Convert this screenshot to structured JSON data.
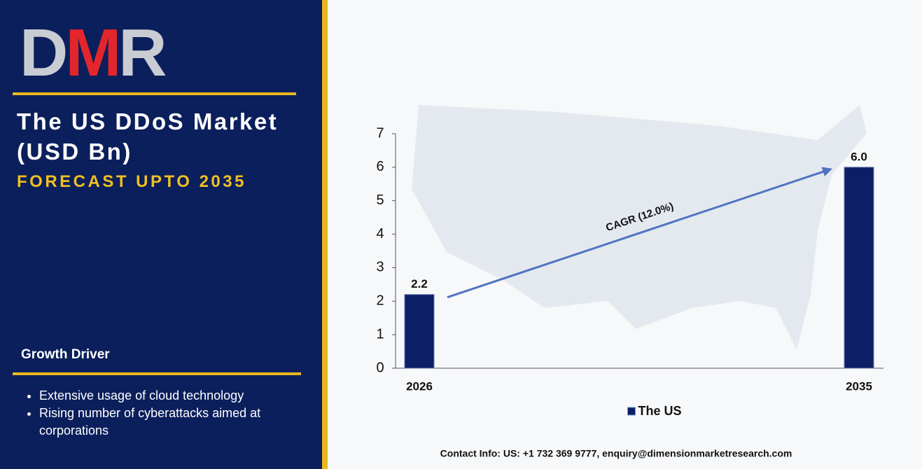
{
  "logo": [
    "D",
    "M",
    "R"
  ],
  "title": [
    "The US DDoS Market",
    "(USD Bn)"
  ],
  "subtitle": "FORECAST UPTO 2035",
  "growth_driver": {
    "heading": "Growth Driver",
    "bullets": [
      "Extensive usage of cloud technology",
      "Rising number of cyberattacks aimed at corporations"
    ]
  },
  "contact": "Contact Info: US: +1 732 369 9777, enquiry@dimensionmarketresearch.com",
  "chart_data": {
    "type": "bar",
    "categories": [
      "2026",
      "2035"
    ],
    "series": [
      {
        "name": "The US",
        "color": "#0c1f66",
        "values": [
          2.2,
          6.0
        ],
        "value_labels": [
          "2.2",
          "6.0"
        ]
      }
    ],
    "ylim": [
      0,
      7
    ],
    "yticks": [
      0,
      1,
      2,
      3,
      4,
      5,
      6,
      7
    ],
    "annotation": "CAGR (12.0%)",
    "legend": "bottom"
  }
}
